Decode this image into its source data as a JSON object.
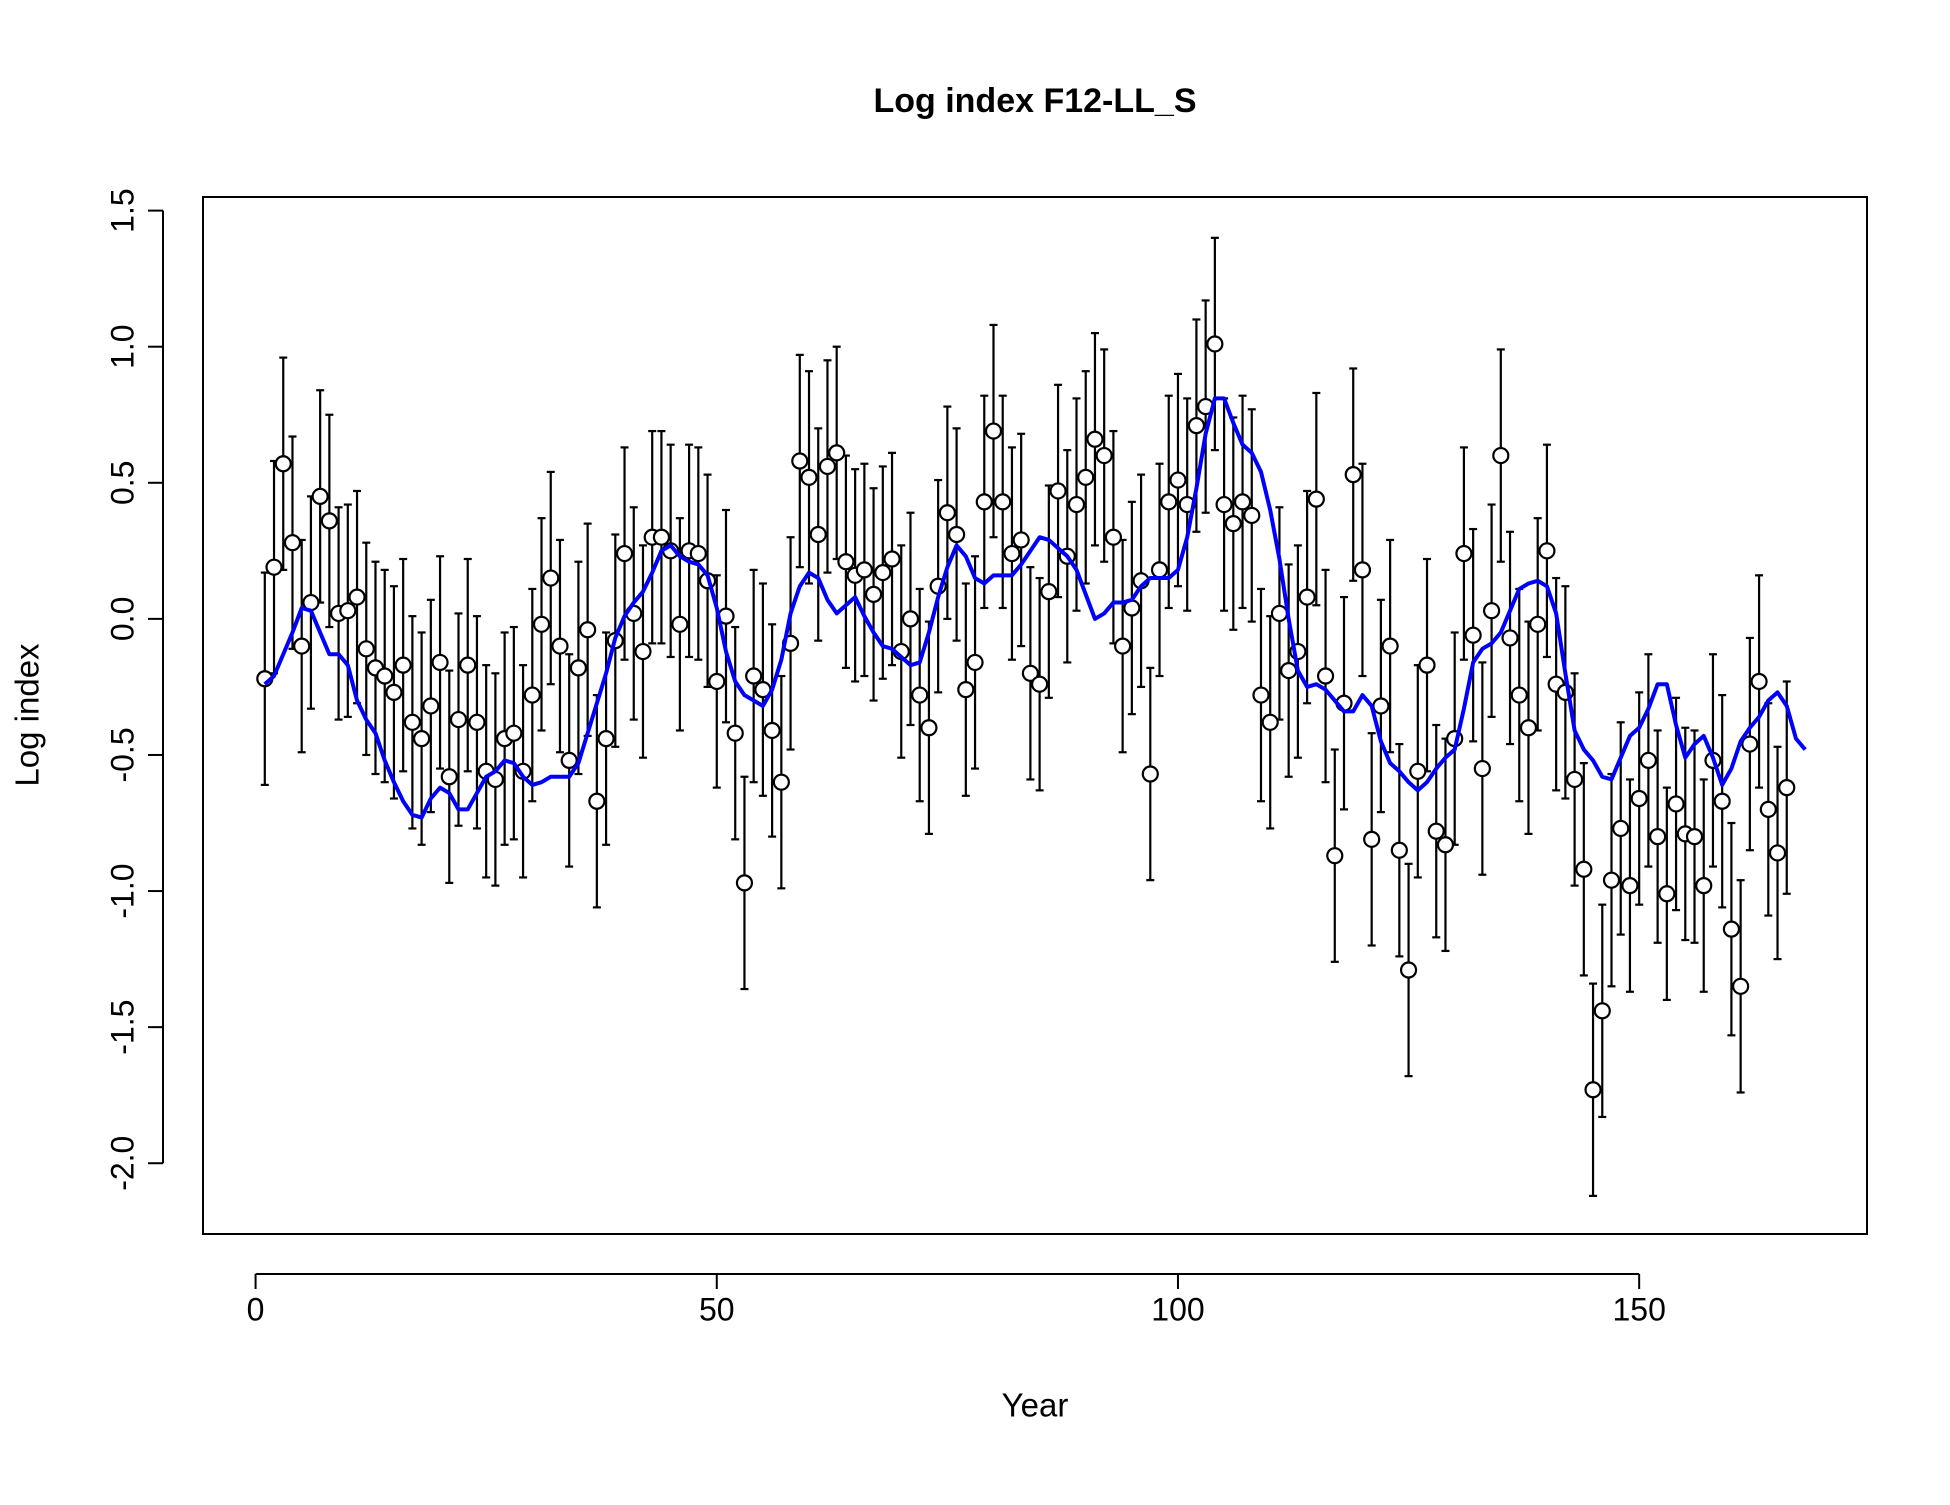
{
  "chart_data": {
    "type": "scatter",
    "title": "Log index F12-LL_S",
    "xlabel": "Year",
    "ylabel": "Log index",
    "xlim": [
      -5.7,
      174.7
    ],
    "ylim": [
      -2.26,
      1.55
    ],
    "xticks": [
      0,
      50,
      100,
      150
    ],
    "yticks": [
      {
        "value": -2,
        "label": "-2.0"
      },
      -1.5,
      {
        "value": -1,
        "label": "-1.0"
      },
      -0.5,
      {
        "value": 0,
        "label": "0.0"
      },
      0.5,
      {
        "value": 1,
        "label": "1.0"
      },
      1.5
    ],
    "x": [
      1,
      2,
      3,
      4,
      5,
      6,
      7,
      8,
      9,
      10,
      11,
      12,
      13,
      14,
      15,
      16,
      17,
      18,
      19,
      20,
      21,
      22,
      23,
      24,
      25,
      26,
      27,
      28,
      29,
      30,
      31,
      32,
      33,
      34,
      35,
      36,
      37,
      38,
      39,
      40,
      41,
      42,
      43,
      44,
      45,
      46,
      47,
      48,
      49,
      50,
      51,
      52,
      53,
      54,
      55,
      56,
      57,
      58,
      59,
      60,
      61,
      62,
      63,
      64,
      65,
      66,
      67,
      68,
      69,
      70,
      71,
      72,
      73,
      74,
      75,
      76,
      77,
      78,
      79,
      80,
      81,
      82,
      83,
      84,
      85,
      86,
      87,
      88,
      89,
      90,
      91,
      92,
      93,
      94,
      95,
      96,
      97,
      98,
      99,
      100,
      101,
      102,
      103,
      104,
      105,
      106,
      107,
      108,
      109,
      110,
      111,
      112,
      113,
      114,
      115,
      116,
      117,
      118,
      119,
      120,
      121,
      122,
      123,
      124,
      125,
      126,
      127,
      128,
      129,
      130,
      131,
      132,
      133,
      134,
      135,
      136,
      137,
      138,
      139,
      140,
      141,
      142,
      143,
      144,
      145,
      146,
      147,
      148,
      149,
      150,
      151,
      152,
      153,
      154,
      155,
      156,
      157,
      158,
      159,
      160,
      161,
      162,
      163,
      164,
      165,
      166,
      167,
      168
    ],
    "series": [
      {
        "type": "errorbar",
        "color": "#000000",
        "error": 0.39,
        "values": [
          -0.22,
          0.19,
          0.57,
          0.28,
          -0.1,
          0.06,
          0.45,
          0.36,
          0.02,
          0.03,
          0.08,
          -0.11,
          -0.18,
          -0.21,
          -0.27,
          -0.17,
          -0.38,
          -0.44,
          -0.32,
          -0.16,
          -0.58,
          -0.37,
          -0.17,
          -0.38,
          -0.56,
          -0.59,
          -0.44,
          -0.42,
          -0.56,
          -0.28,
          -0.02,
          0.15,
          -0.1,
          -0.52,
          -0.18,
          -0.04,
          -0.67,
          -0.44,
          -0.08,
          0.24,
          0.02,
          -0.12,
          0.3,
          0.3,
          0.25,
          -0.02,
          0.25,
          0.24,
          0.14,
          -0.23,
          0.01,
          -0.42,
          -0.97,
          -0.21,
          -0.26,
          -0.41,
          -0.6,
          -0.09,
          0.58,
          0.52,
          0.31,
          0.56,
          0.61,
          0.21,
          0.16,
          0.18,
          0.09,
          0.17,
          0.22,
          -0.12,
          0.0,
          -0.28,
          -0.4,
          0.12,
          0.39,
          0.31,
          -0.26,
          -0.16,
          0.43,
          0.69,
          0.43,
          0.24,
          0.29,
          -0.2,
          -0.24,
          0.1,
          0.47,
          0.23,
          0.42,
          0.52,
          0.66,
          0.6,
          0.3,
          -0.1,
          0.04,
          0.14,
          -0.57,
          0.18,
          0.43,
          0.51,
          0.42,
          0.71,
          0.78,
          1.01,
          0.42,
          0.35,
          0.43,
          0.38,
          -0.28,
          -0.38,
          0.02,
          -0.19,
          -0.12,
          0.08,
          0.44,
          -0.21,
          -0.87,
          -0.31,
          0.53,
          0.18,
          -0.81,
          -0.32,
          -0.1,
          -0.85,
          -1.29,
          -0.56,
          -0.17,
          -0.78,
          -0.83,
          -0.44,
          0.24,
          -0.06,
          -0.55,
          0.03,
          0.6,
          -0.07,
          -0.28,
          -0.4,
          -0.02,
          0.25,
          -0.24,
          -0.27,
          -0.59,
          -0.92,
          -1.73,
          -1.44,
          -0.96,
          -0.77,
          -0.98,
          -0.66,
          -0.52,
          -0.8,
          -1.01,
          -0.68,
          -0.79,
          -0.8,
          -0.98,
          -0.52,
          -0.67,
          -1.14,
          -1.35,
          -0.46,
          -0.23,
          -0.7,
          -0.86,
          -0.62,
          null,
          null
        ]
      },
      {
        "type": "line",
        "color": "#0000ff",
        "values": [
          -0.24,
          -0.21,
          -0.13,
          -0.05,
          0.04,
          0.03,
          -0.05,
          -0.13,
          -0.13,
          -0.17,
          -0.3,
          -0.37,
          -0.42,
          -0.52,
          -0.6,
          -0.67,
          -0.72,
          -0.73,
          -0.66,
          -0.62,
          -0.64,
          -0.7,
          -0.7,
          -0.64,
          -0.58,
          -0.56,
          -0.52,
          -0.53,
          -0.58,
          -0.61,
          -0.6,
          -0.58,
          -0.58,
          -0.58,
          -0.53,
          -0.42,
          -0.31,
          -0.2,
          -0.07,
          0.01,
          0.06,
          0.1,
          0.17,
          0.25,
          0.27,
          0.23,
          0.21,
          0.2,
          0.16,
          0.04,
          -0.12,
          -0.23,
          -0.28,
          -0.3,
          -0.32,
          -0.26,
          -0.15,
          0.02,
          0.12,
          0.17,
          0.15,
          0.07,
          0.02,
          0.05,
          0.08,
          0.01,
          -0.05,
          -0.1,
          -0.11,
          -0.14,
          -0.17,
          -0.16,
          -0.05,
          0.08,
          0.19,
          0.27,
          0.23,
          0.15,
          0.13,
          0.16,
          0.16,
          0.16,
          0.2,
          0.25,
          0.3,
          0.29,
          0.26,
          0.23,
          0.18,
          0.09,
          0.0,
          0.02,
          0.06,
          0.06,
          0.07,
          0.12,
          0.15,
          0.15,
          0.15,
          0.18,
          0.3,
          0.48,
          0.68,
          0.81,
          0.81,
          0.72,
          0.64,
          0.61,
          0.54,
          0.4,
          0.22,
          0.0,
          -0.19,
          -0.25,
          -0.24,
          -0.26,
          -0.3,
          -0.34,
          -0.34,
          -0.28,
          -0.32,
          -0.45,
          -0.53,
          -0.56,
          -0.6,
          -0.63,
          -0.6,
          -0.55,
          -0.51,
          -0.48,
          -0.33,
          -0.16,
          -0.11,
          -0.09,
          -0.05,
          0.03,
          0.11,
          0.13,
          0.14,
          0.12,
          0.02,
          -0.2,
          -0.41,
          -0.48,
          -0.52,
          -0.58,
          -0.59,
          -0.51,
          -0.43,
          -0.4,
          -0.33,
          -0.24,
          -0.24,
          -0.39,
          -0.51,
          -0.46,
          -0.43,
          -0.51,
          -0.61,
          -0.55,
          -0.45,
          -0.4,
          -0.36,
          -0.3,
          -0.27,
          -0.32,
          -0.44,
          -0.48
        ]
      }
    ]
  }
}
